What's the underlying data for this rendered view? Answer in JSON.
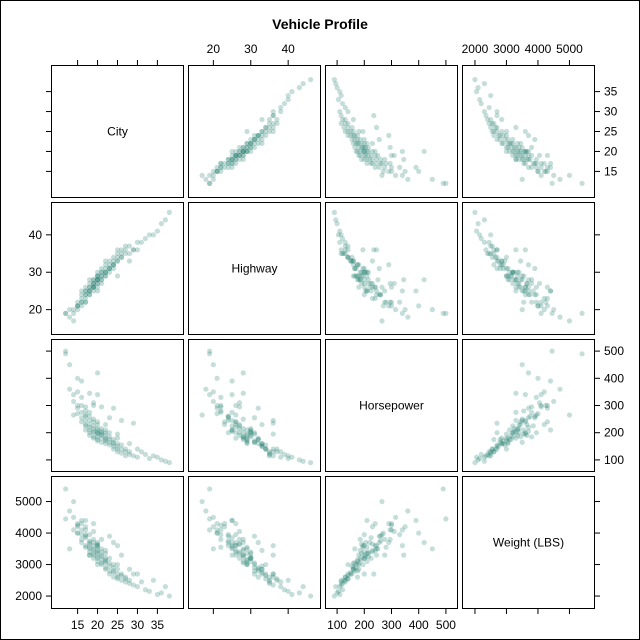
{
  "chart_data": {
    "type": "scatter",
    "title": "Vehicle Profile",
    "variables": [
      {
        "name": "City",
        "range": [
          10,
          40
        ],
        "ticks": [
          15,
          20,
          25,
          30,
          35
        ]
      },
      {
        "name": "Highway",
        "range": [
          15,
          47
        ],
        "ticks": [
          20,
          30,
          40
        ]
      },
      {
        "name": "Horsepower",
        "range": [
          80,
          520
        ],
        "ticks": [
          100,
          200,
          300,
          400,
          500
        ]
      },
      {
        "name": "Weight (LBS)",
        "range": [
          1800,
          5600
        ],
        "ticks": [
          2000,
          3000,
          4000,
          5000
        ]
      }
    ],
    "marker_color": "#1a7a6b",
    "marker_opacity": 0.25,
    "grid": false,
    "legend": "none",
    "columns": [
      "City",
      "Highway",
      "Horsepower",
      "Weight (LBS)"
    ],
    "rows": [
      [
        12,
        19,
        500,
        4450
      ],
      [
        12,
        19,
        490,
        5400
      ],
      [
        13,
        18,
        360,
        4700
      ],
      [
        14,
        17,
        265,
        5000
      ],
      [
        14,
        19,
        340,
        4100
      ],
      [
        14,
        20,
        315,
        4500
      ],
      [
        15,
        20,
        350,
        4200
      ],
      [
        15,
        21,
        290,
        4300
      ],
      [
        15,
        21,
        270,
        4000
      ],
      [
        15,
        22,
        300,
        4250
      ],
      [
        16,
        22,
        330,
        3950
      ],
      [
        16,
        21,
        300,
        4100
      ],
      [
        16,
        23,
        240,
        4300
      ],
      [
        16,
        22,
        275,
        3800
      ],
      [
        16,
        24,
        255,
        3700
      ],
      [
        17,
        22,
        295,
        4100
      ],
      [
        17,
        23,
        230,
        4200
      ],
      [
        17,
        24,
        260,
        3900
      ],
      [
        17,
        25,
        210,
        4400
      ],
      [
        17,
        24,
        245,
        3600
      ],
      [
        17,
        22,
        280,
        3550
      ],
      [
        17,
        25,
        225,
        3850
      ],
      [
        18,
        25,
        245,
        3500
      ],
      [
        18,
        24,
        260,
        3750
      ],
      [
        18,
        26,
        220,
        3700
      ],
      [
        18,
        24,
        200,
        3950
      ],
      [
        18,
        26,
        230,
        3400
      ],
      [
        18,
        25,
        210,
        3550
      ],
      [
        18,
        27,
        190,
        3650
      ],
      [
        18,
        25,
        275,
        3300
      ],
      [
        19,
        26,
        200,
        3600
      ],
      [
        19,
        27,
        215,
        3350
      ],
      [
        19,
        26,
        240,
        3450
      ],
      [
        19,
        28,
        185,
        3800
      ],
      [
        19,
        27,
        225,
        3200
      ],
      [
        19,
        25,
        205,
        3700
      ],
      [
        19,
        28,
        250,
        3500
      ],
      [
        19,
        26,
        180,
        3300
      ],
      [
        20,
        27,
        200,
        3400
      ],
      [
        20,
        28,
        215,
        3250
      ],
      [
        20,
        29,
        195,
        3550
      ],
      [
        20,
        28,
        175,
        3100
      ],
      [
        20,
        27,
        230,
        3650
      ],
      [
        20,
        29,
        210,
        3350
      ],
      [
        20,
        28,
        185,
        3450
      ],
      [
        20,
        30,
        200,
        3200
      ],
      [
        20,
        26,
        240,
        3600
      ],
      [
        20,
        29,
        170,
        3000
      ],
      [
        21,
        28,
        200,
        3300
      ],
      [
        21,
        29,
        190,
        3150
      ],
      [
        21,
        30,
        215,
        3400
      ],
      [
        21,
        28,
        180,
        3050
      ],
      [
        21,
        30,
        205,
        3250
      ],
      [
        21,
        29,
        165,
        3500
      ],
      [
        21,
        31,
        195,
        3000
      ],
      [
        22,
        29,
        175,
        3150
      ],
      [
        22,
        30,
        190,
        3350
      ],
      [
        22,
        31,
        170,
        2900
      ],
      [
        22,
        30,
        200,
        3200
      ],
      [
        22,
        29,
        160,
        3050
      ],
      [
        22,
        32,
        180,
        2850
      ],
      [
        22,
        30,
        210,
        3100
      ],
      [
        23,
        31,
        165,
        3050
      ],
      [
        23,
        32,
        175,
        2800
      ],
      [
        23,
        30,
        185,
        3200
      ],
      [
        23,
        33,
        155,
        2950
      ],
      [
        23,
        31,
        200,
        2700
      ],
      [
        24,
        32,
        160,
        2900
      ],
      [
        24,
        33,
        150,
        2750
      ],
      [
        24,
        32,
        175,
        2600
      ],
      [
        24,
        34,
        140,
        3000
      ],
      [
        24,
        31,
        165,
        2800
      ],
      [
        25,
        33,
        150,
        2700
      ],
      [
        25,
        34,
        140,
        2550
      ],
      [
        25,
        33,
        160,
        2850
      ],
      [
        25,
        35,
        130,
        2600
      ],
      [
        26,
        34,
        140,
        2650
      ],
      [
        26,
        35,
        125,
        2500
      ],
      [
        26,
        34,
        155,
        2700
      ],
      [
        27,
        36,
        130,
        2600
      ],
      [
        27,
        35,
        115,
        2450
      ],
      [
        27,
        37,
        140,
        2550
      ],
      [
        28,
        35,
        120,
        2400
      ],
      [
        28,
        37,
        130,
        2500
      ],
      [
        29,
        36,
        115,
        2350
      ],
      [
        30,
        38,
        110,
        2300
      ],
      [
        31,
        38,
        130,
        2450
      ],
      [
        32,
        39,
        120,
        2200
      ],
      [
        33,
        40,
        105,
        2150
      ],
      [
        35,
        41,
        110,
        2050
      ],
      [
        36,
        43,
        100,
        2100
      ],
      [
        37,
        44,
        95,
        2300
      ],
      [
        38,
        46,
        90,
        2000
      ],
      [
        26,
        36,
        245,
        3300
      ],
      [
        29,
        36,
        235,
        2700
      ],
      [
        24,
        32,
        290,
        3700
      ],
      [
        19,
        27,
        310,
        4050
      ],
      [
        20,
        25,
        340,
        3600
      ],
      [
        15,
        21,
        400,
        4000
      ],
      [
        20,
        28,
        420,
        3700
      ],
      [
        19,
        26,
        300,
        4300
      ],
      [
        18,
        28,
        345,
        3300
      ],
      [
        22,
        33,
        230,
        3450
      ],
      [
        25,
        36,
        195,
        3600
      ],
      [
        23,
        31,
        255,
        3900
      ],
      [
        17,
        26,
        265,
        3950
      ],
      [
        21,
        27,
        295,
        3800
      ],
      [
        16,
        25,
        390,
        4400
      ],
      [
        13,
        20,
        450,
        3500
      ],
      [
        25,
        29,
        180,
        3000
      ],
      [
        30,
        36,
        140,
        2700
      ],
      [
        34,
        40,
        115,
        2500
      ],
      [
        28,
        33,
        160,
        2850
      ]
    ]
  }
}
